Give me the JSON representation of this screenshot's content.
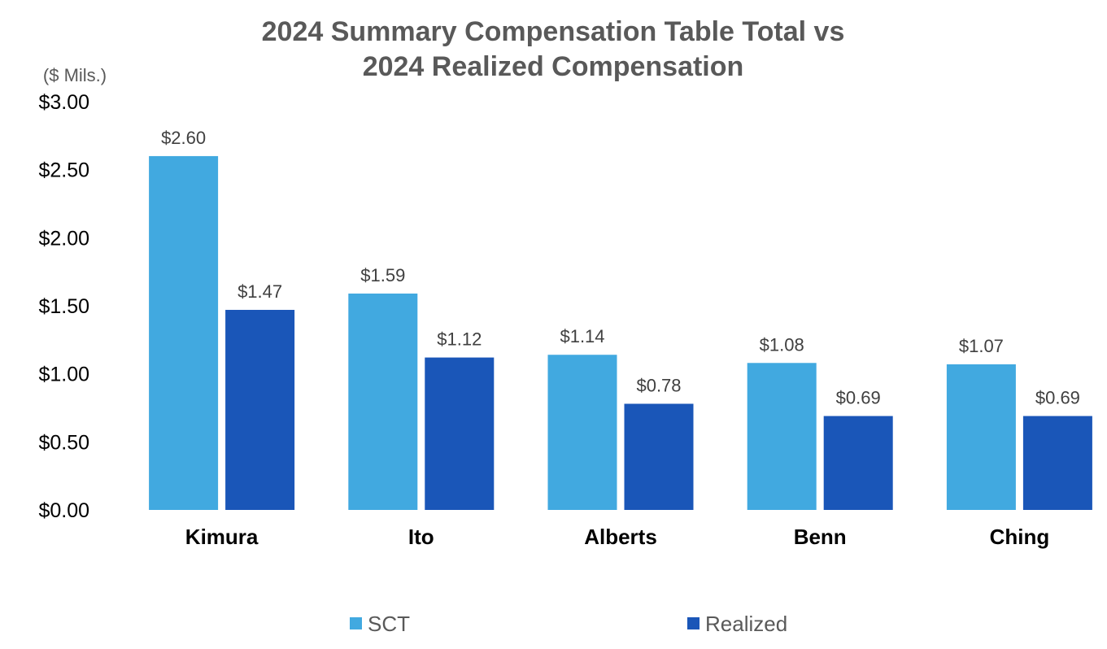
{
  "chart_data": {
    "type": "bar",
    "title_lines": [
      "2024 Summary Compensation Table Total vs",
      "2024 Realized Compensation"
    ],
    "unit_label": "($ Mils.)",
    "categories": [
      "Kimura",
      "Ito",
      "Alberts",
      "Benn",
      "Ching"
    ],
    "series": [
      {
        "name": "SCT",
        "color": "#41A9E0",
        "values": [
          2.6,
          1.59,
          1.14,
          1.08,
          1.07
        ],
        "labels": [
          "$2.60",
          "$1.59",
          "$1.14",
          "$1.08",
          "$1.07"
        ]
      },
      {
        "name": "Realized",
        "color": "#1A56B8",
        "values": [
          1.47,
          1.12,
          0.78,
          0.69,
          0.69
        ],
        "labels": [
          "$1.47",
          "$1.12",
          "$0.78",
          "$0.69",
          "$0.69"
        ]
      }
    ],
    "ylim": [
      0,
      3
    ],
    "yticks": [
      0,
      0.5,
      1,
      1.5,
      2,
      2.5,
      3
    ],
    "ytick_labels": [
      "$0.00",
      "$0.50",
      "$1.00",
      "$1.50",
      "$2.00",
      "$2.50",
      "$3.00"
    ],
    "grid": false,
    "legend_position": "bottom"
  }
}
